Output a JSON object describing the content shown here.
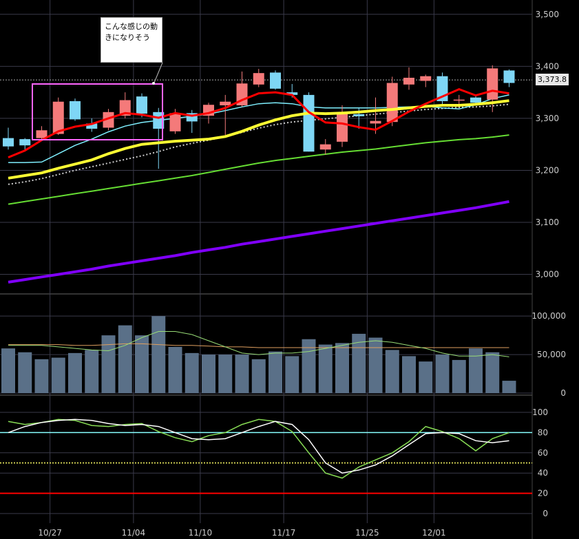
{
  "annotation": {
    "line1": "こんな感じの動",
    "line2": "きになりそう"
  },
  "price_badge": "3,373.8",
  "colors": {
    "up": "#f47a7a",
    "down": "#7ed6f5",
    "ma_short": "#ff0000",
    "ma_mid": "#ffff33",
    "ma_long": "#66dd33",
    "ma_very_long": "#8000ff",
    "ma_fast_thin": "#7ff0ff",
    "dotted": "#cccccc",
    "grid": "#3a3a4a",
    "volume": "#5a7088",
    "stoch_k": "#88dd55",
    "stoch_d": "#ffffff"
  },
  "chart_data": [
    {
      "type": "candlestick",
      "y_ticks": [
        "3,000",
        "3,100",
        "3,200",
        "3,300",
        "3,400",
        "3,500"
      ],
      "ylim": [
        2965,
        3505
      ],
      "x_ticks": [
        "10/27",
        "11/04",
        "11/10",
        "11/17",
        "11/25",
        "12/01"
      ],
      "x_tick_index": [
        2.5,
        7.5,
        11.5,
        16.5,
        21.5,
        25.5
      ],
      "candles": [
        {
          "o": 3262,
          "h": 3282,
          "l": 3240,
          "c": 3246
        },
        {
          "o": 3260,
          "h": 3262,
          "l": 3240,
          "c": 3248
        },
        {
          "o": 3262,
          "h": 3285,
          "l": 3257,
          "c": 3277
        },
        {
          "o": 3270,
          "h": 3340,
          "l": 3268,
          "c": 3332
        },
        {
          "o": 3333,
          "h": 3338,
          "l": 3295,
          "c": 3298
        },
        {
          "o": 3290,
          "h": 3300,
          "l": 3274,
          "c": 3280
        },
        {
          "o": 3282,
          "h": 3318,
          "l": 3277,
          "c": 3312
        },
        {
          "o": 3305,
          "h": 3350,
          "l": 3300,
          "c": 3335
        },
        {
          "o": 3342,
          "h": 3348,
          "l": 3302,
          "c": 3309
        },
        {
          "o": 3312,
          "h": 3320,
          "l": 3203,
          "c": 3280
        },
        {
          "o": 3275,
          "h": 3318,
          "l": 3270,
          "c": 3310
        },
        {
          "o": 3310,
          "h": 3316,
          "l": 3272,
          "c": 3294
        },
        {
          "o": 3305,
          "h": 3330,
          "l": 3290,
          "c": 3326
        },
        {
          "o": 3325,
          "h": 3345,
          "l": 3268,
          "c": 3332
        },
        {
          "o": 3325,
          "h": 3390,
          "l": 3322,
          "c": 3367
        },
        {
          "o": 3365,
          "h": 3395,
          "l": 3360,
          "c": 3387
        },
        {
          "o": 3388,
          "h": 3392,
          "l": 3355,
          "c": 3357
        },
        {
          "o": 3350,
          "h": 3366,
          "l": 3340,
          "c": 3345
        },
        {
          "o": 3345,
          "h": 3350,
          "l": 3236,
          "c": 3236
        },
        {
          "o": 3240,
          "h": 3260,
          "l": 3230,
          "c": 3250
        },
        {
          "o": 3255,
          "h": 3325,
          "l": 3245,
          "c": 3312
        },
        {
          "o": 3308,
          "h": 3320,
          "l": 3280,
          "c": 3304
        },
        {
          "o": 3290,
          "h": 3340,
          "l": 3270,
          "c": 3295
        },
        {
          "o": 3293,
          "h": 3380,
          "l": 3285,
          "c": 3368
        },
        {
          "o": 3365,
          "h": 3398,
          "l": 3355,
          "c": 3378
        },
        {
          "o": 3372,
          "h": 3384,
          "l": 3360,
          "c": 3381
        },
        {
          "o": 3381,
          "h": 3388,
          "l": 3325,
          "c": 3333
        },
        {
          "o": 3334,
          "h": 3345,
          "l": 3322,
          "c": 3336
        },
        {
          "o": 3340,
          "h": 3345,
          "l": 3328,
          "c": 3330
        },
        {
          "o": 3336,
          "h": 3402,
          "l": 3312,
          "c": 3396
        },
        {
          "o": 3392,
          "h": 3394,
          "l": 3360,
          "c": 3368
        }
      ],
      "ma_short": [
        3225,
        3238,
        3258,
        3275,
        3284,
        3289,
        3300,
        3310,
        3307,
        3301,
        3310,
        3305,
        3310,
        3320,
        3335,
        3348,
        3350,
        3345,
        3312,
        3292,
        3290,
        3283,
        3278,
        3295,
        3313,
        3328,
        3342,
        3356,
        3344,
        3353,
        3348
      ],
      "ma_fast_thin": [
        3215,
        3215,
        3216,
        3232,
        3248,
        3260,
        3274,
        3285,
        3292,
        3296,
        3300,
        3304,
        3308,
        3315,
        3322,
        3328,
        3330,
        3328,
        3322,
        3320,
        3320,
        3320,
        3320,
        3321,
        3322,
        3323,
        3320,
        3318,
        3326,
        3338,
        3345
      ],
      "ma_mid": [
        3185,
        3190,
        3195,
        3204,
        3212,
        3220,
        3232,
        3242,
        3250,
        3253,
        3256,
        3258,
        3260,
        3265,
        3275,
        3287,
        3297,
        3305,
        3310,
        3309,
        3310,
        3312,
        3315,
        3317,
        3320,
        3323,
        3325,
        3325,
        3327,
        3330,
        3334
      ],
      "ma_dotted": [
        3173,
        3178,
        3184,
        3192,
        3200,
        3207,
        3214,
        3221,
        3228,
        3236,
        3245,
        3252,
        3258,
        3265,
        3273,
        3281,
        3288,
        3293,
        3296,
        3299,
        3302,
        3305,
        3308,
        3311,
        3314,
        3317,
        3319,
        3321,
        3322,
        3324,
        3327
      ],
      "ma_long": [
        3135,
        3140,
        3145,
        3150,
        3155,
        3160,
        3165,
        3170,
        3175,
        3180,
        3185,
        3190,
        3196,
        3202,
        3208,
        3214,
        3219,
        3223,
        3227,
        3231,
        3235,
        3238,
        3241,
        3245,
        3249,
        3253,
        3256,
        3259,
        3261,
        3264,
        3268
      ],
      "ma_very_long": [
        2985,
        2990,
        2995,
        3000,
        3005,
        3010,
        3016,
        3021,
        3026,
        3031,
        3036,
        3042,
        3047,
        3052,
        3058,
        3063,
        3068,
        3073,
        3078,
        3083,
        3088,
        3093,
        3098,
        3103,
        3108,
        3113,
        3118,
        3123,
        3128,
        3134,
        3140
      ],
      "last_price": 3373.8
    },
    {
      "type": "bar",
      "y_ticks": [
        "0",
        "50,000",
        "100,000"
      ],
      "ylim": [
        0,
        110000
      ],
      "volumes": [
        58000,
        53000,
        44000,
        46000,
        52000,
        56000,
        75000,
        88000,
        75000,
        100000,
        60000,
        52000,
        50000,
        50000,
        50000,
        44000,
        54000,
        48000,
        70000,
        63000,
        65000,
        77000,
        72000,
        56000,
        48000,
        41000,
        50000,
        43000,
        58000,
        53000,
        16000
      ],
      "vol_ma_green": [
        62000,
        62000,
        62000,
        60000,
        58000,
        56000,
        55000,
        62000,
        72000,
        80000,
        80000,
        76000,
        68000,
        60000,
        52000,
        50000,
        52000,
        52000,
        54000,
        58000,
        62000,
        66000,
        68000,
        66000,
        62000,
        58000,
        52000,
        48000,
        48000,
        50000,
        47000
      ],
      "vol_ma_orange": [
        63000,
        63000,
        63000,
        63000,
        62000,
        62000,
        63000,
        64000,
        64000,
        63000,
        62000,
        62000,
        61000,
        60000,
        60000,
        59000,
        59000,
        59000,
        59000,
        59000,
        59000,
        59000,
        59000,
        59000,
        59000,
        59000,
        59000,
        59000,
        59000,
        59000,
        59000
      ]
    },
    {
      "type": "line",
      "y_ticks": [
        "0",
        "20",
        "40",
        "60",
        "80",
        "100"
      ],
      "ylim": [
        0,
        100
      ],
      "hlines": [
        80,
        50,
        20
      ],
      "stoch_k": [
        91,
        88,
        90,
        93,
        92,
        87,
        86,
        88,
        89,
        81,
        75,
        71,
        77,
        80,
        88,
        93,
        91,
        81,
        60,
        40,
        35,
        46,
        53,
        60,
        71,
        86,
        81,
        74,
        62,
        74,
        80
      ],
      "stoch_d": [
        80,
        86,
        90,
        92,
        93,
        92,
        89,
        87,
        88,
        86,
        80,
        74,
        73,
        74,
        80,
        86,
        91,
        88,
        73,
        50,
        40,
        43,
        48,
        57,
        68,
        79,
        80,
        79,
        72,
        70,
        72
      ]
    }
  ]
}
